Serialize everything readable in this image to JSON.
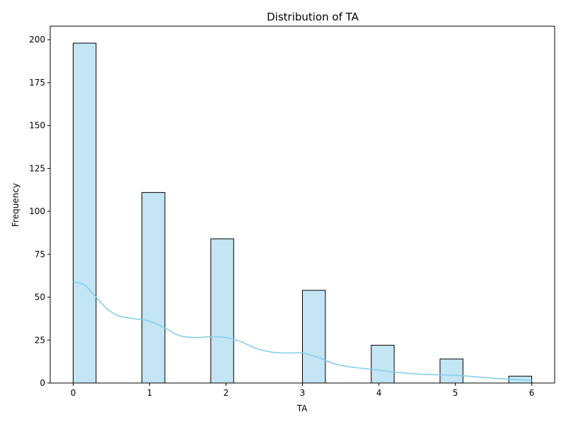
{
  "chart_data": {
    "type": "bar",
    "title": "Distribution of TA",
    "xlabel": "TA",
    "ylabel": "Frequency",
    "xlim": [
      -0.3,
      6.3
    ],
    "ylim": [
      0,
      207.9
    ],
    "x_ticks": [
      0,
      1,
      2,
      3,
      4,
      5,
      6
    ],
    "y_ticks": [
      0,
      25,
      50,
      75,
      100,
      125,
      150,
      175,
      200
    ],
    "bin_width": 0.3,
    "bins": [
      {
        "start": 0.0,
        "value": 198
      },
      {
        "start": 0.9,
        "value": 111
      },
      {
        "start": 1.8,
        "value": 84
      },
      {
        "start": 3.0,
        "value": 54
      },
      {
        "start": 3.9,
        "value": 22
      },
      {
        "start": 4.8,
        "value": 14
      },
      {
        "start": 5.7,
        "value": 4
      }
    ],
    "kde": {
      "x": [
        0.0,
        0.15,
        0.3,
        0.45,
        0.6,
        0.8,
        1.0,
        1.2,
        1.4,
        1.6,
        1.8,
        2.0,
        2.2,
        2.4,
        2.6,
        2.8,
        3.0,
        3.2,
        3.4,
        3.6,
        3.8,
        4.0,
        4.3,
        4.6,
        5.0,
        5.3,
        5.6,
        6.0
      ],
      "y": [
        59,
        57,
        50,
        43,
        39,
        37.5,
        36,
        32,
        27.5,
        26.5,
        27,
        26.5,
        24,
        20,
        18,
        17.5,
        17.5,
        15,
        11.5,
        9.5,
        8.5,
        7.5,
        6,
        5,
        4.5,
        3.5,
        2.5,
        1.5
      ]
    },
    "grid": false,
    "legend": "none",
    "colors": {
      "bar_fill": "#c3e5f4",
      "bar_edge": "#000000",
      "kde_line": "#87ceeb",
      "axis": "#000000"
    }
  }
}
